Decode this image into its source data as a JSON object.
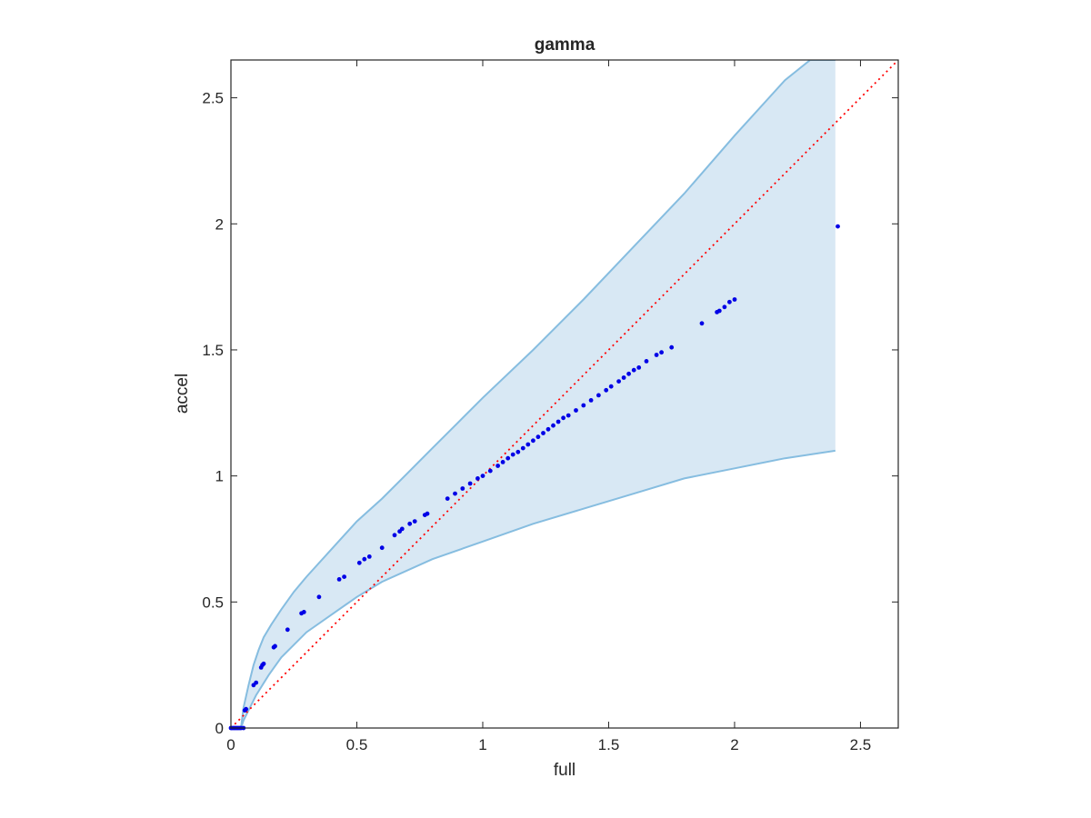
{
  "chart_data": {
    "type": "scatter",
    "title": "gamma",
    "xlabel": "full",
    "ylabel": "accel",
    "xlim": [
      0,
      2.65
    ],
    "ylim": [
      0,
      2.65
    ],
    "xticks": [
      0,
      0.5,
      1,
      1.5,
      2,
      2.5
    ],
    "xtick_labels": [
      "0",
      "0.5",
      "1",
      "1.5",
      "2",
      "2.5"
    ],
    "yticks": [
      0,
      0.5,
      1,
      1.5,
      2,
      2.5
    ],
    "ytick_labels": [
      "0",
      "0.5",
      "1",
      "1.5",
      "2",
      "2.5"
    ],
    "grid": false,
    "colors": {
      "points": "#0000e6",
      "band_fill": "#d8e8f4",
      "band_edge": "#86bde0",
      "reference_line": "#ff0000",
      "axes": "#262626"
    },
    "reference_line": {
      "x": [
        0,
        2.65
      ],
      "y": [
        0,
        2.65
      ],
      "style": "dotted"
    },
    "band": {
      "upper": [
        [
          0.04,
          0.0
        ],
        [
          0.05,
          0.08
        ],
        [
          0.07,
          0.17
        ],
        [
          0.09,
          0.25
        ],
        [
          0.11,
          0.31
        ],
        [
          0.13,
          0.36
        ],
        [
          0.16,
          0.41
        ],
        [
          0.2,
          0.47
        ],
        [
          0.25,
          0.54
        ],
        [
          0.3,
          0.6
        ],
        [
          0.4,
          0.71
        ],
        [
          0.5,
          0.82
        ],
        [
          0.6,
          0.91
        ],
        [
          0.7,
          1.01
        ],
        [
          0.8,
          1.11
        ],
        [
          0.9,
          1.21
        ],
        [
          1.0,
          1.31
        ],
        [
          1.2,
          1.5
        ],
        [
          1.4,
          1.7
        ],
        [
          1.6,
          1.91
        ],
        [
          1.8,
          2.12
        ],
        [
          2.0,
          2.35
        ],
        [
          2.2,
          2.57
        ],
        [
          2.3,
          2.65
        ],
        [
          2.4,
          2.65
        ]
      ],
      "lower": [
        [
          0.04,
          0.0
        ],
        [
          0.05,
          0.03
        ],
        [
          0.07,
          0.07
        ],
        [
          0.1,
          0.13
        ],
        [
          0.15,
          0.21
        ],
        [
          0.2,
          0.28
        ],
        [
          0.3,
          0.38
        ],
        [
          0.4,
          0.45
        ],
        [
          0.5,
          0.52
        ],
        [
          0.6,
          0.58
        ],
        [
          0.8,
          0.67
        ],
        [
          1.0,
          0.74
        ],
        [
          1.2,
          0.81
        ],
        [
          1.4,
          0.87
        ],
        [
          1.6,
          0.93
        ],
        [
          1.8,
          0.99
        ],
        [
          2.0,
          1.03
        ],
        [
          2.2,
          1.07
        ],
        [
          2.4,
          1.1
        ]
      ]
    },
    "series": [
      {
        "points": [
          [
            0.0,
            0.0
          ],
          [
            0.005,
            0.0
          ],
          [
            0.01,
            0.0
          ],
          [
            0.015,
            0.0
          ],
          [
            0.02,
            0.0
          ],
          [
            0.025,
            0.0
          ],
          [
            0.03,
            0.0
          ],
          [
            0.035,
            0.0
          ],
          [
            0.04,
            0.0
          ],
          [
            0.05,
            0.0
          ],
          [
            0.055,
            0.07
          ],
          [
            0.06,
            0.075
          ],
          [
            0.09,
            0.17
          ],
          [
            0.1,
            0.18
          ],
          [
            0.12,
            0.24
          ],
          [
            0.125,
            0.25
          ],
          [
            0.13,
            0.255
          ],
          [
            0.17,
            0.32
          ],
          [
            0.175,
            0.325
          ],
          [
            0.225,
            0.39
          ],
          [
            0.28,
            0.455
          ],
          [
            0.29,
            0.46
          ],
          [
            0.35,
            0.52
          ],
          [
            0.43,
            0.59
          ],
          [
            0.45,
            0.6
          ],
          [
            0.51,
            0.655
          ],
          [
            0.53,
            0.67
          ],
          [
            0.55,
            0.68
          ],
          [
            0.6,
            0.715
          ],
          [
            0.65,
            0.765
          ],
          [
            0.67,
            0.78
          ],
          [
            0.68,
            0.79
          ],
          [
            0.71,
            0.81
          ],
          [
            0.73,
            0.82
          ],
          [
            0.77,
            0.845
          ],
          [
            0.78,
            0.85
          ],
          [
            0.86,
            0.91
          ],
          [
            0.89,
            0.93
          ],
          [
            0.92,
            0.95
          ],
          [
            0.95,
            0.97
          ],
          [
            0.98,
            0.99
          ],
          [
            1.0,
            1.0
          ],
          [
            1.03,
            1.02
          ],
          [
            1.06,
            1.04
          ],
          [
            1.08,
            1.055
          ],
          [
            1.1,
            1.07
          ],
          [
            1.12,
            1.085
          ],
          [
            1.14,
            1.095
          ],
          [
            1.16,
            1.11
          ],
          [
            1.18,
            1.125
          ],
          [
            1.2,
            1.14
          ],
          [
            1.22,
            1.155
          ],
          [
            1.24,
            1.17
          ],
          [
            1.26,
            1.185
          ],
          [
            1.28,
            1.2
          ],
          [
            1.3,
            1.215
          ],
          [
            1.32,
            1.23
          ],
          [
            1.34,
            1.24
          ],
          [
            1.37,
            1.26
          ],
          [
            1.4,
            1.28
          ],
          [
            1.43,
            1.3
          ],
          [
            1.46,
            1.32
          ],
          [
            1.49,
            1.34
          ],
          [
            1.51,
            1.355
          ],
          [
            1.54,
            1.375
          ],
          [
            1.56,
            1.39
          ],
          [
            1.58,
            1.405
          ],
          [
            1.6,
            1.42
          ],
          [
            1.62,
            1.43
          ],
          [
            1.65,
            1.455
          ],
          [
            1.69,
            1.48
          ],
          [
            1.71,
            1.49
          ],
          [
            1.75,
            1.51
          ],
          [
            1.87,
            1.605
          ],
          [
            1.93,
            1.65
          ],
          [
            1.94,
            1.655
          ],
          [
            1.96,
            1.67
          ],
          [
            1.98,
            1.69
          ],
          [
            2.0,
            1.7
          ],
          [
            2.41,
            1.99
          ]
        ]
      }
    ]
  }
}
